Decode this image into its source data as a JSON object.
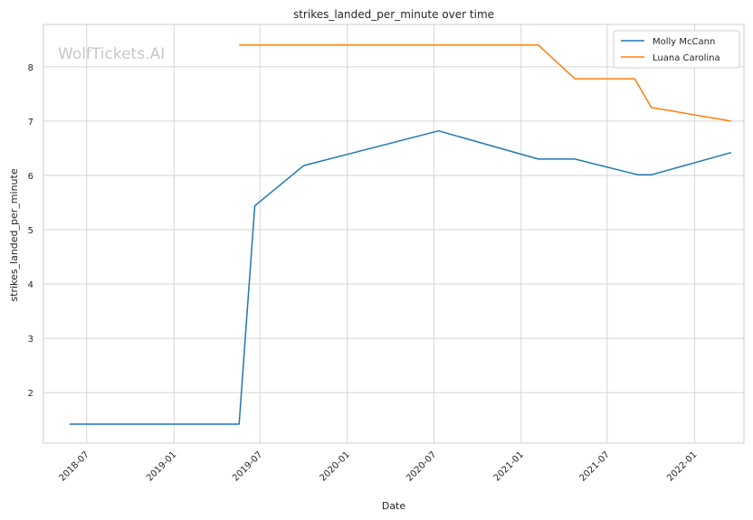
{
  "watermark": "WolfTickets.AI",
  "chart_data": {
    "type": "line",
    "title": "strikes_landed_per_minute over time",
    "xlabel": "Date",
    "ylabel": "strikes_landed_per_minute",
    "x_ticks": [
      "2018-07",
      "2019-01",
      "2019-07",
      "2020-01",
      "2020-07",
      "2021-01",
      "2021-07",
      "2022-01"
    ],
    "y_ticks": [
      2,
      3,
      4,
      5,
      6,
      7,
      8
    ],
    "xlim": [
      "2018-04-01",
      "2022-04-15"
    ],
    "ylim": [
      1.07,
      8.78
    ],
    "grid": true,
    "legend_position": "top-right",
    "series": [
      {
        "name": "Molly McCann",
        "color": "#1f77b4",
        "points": [
          {
            "x": "2018-05-26",
            "y": 1.42
          },
          {
            "x": "2019-05-18",
            "y": 1.42
          },
          {
            "x": "2019-06-20",
            "y": 5.44
          },
          {
            "x": "2019-10-01",
            "y": 6.18
          },
          {
            "x": "2020-07-11",
            "y": 6.82
          },
          {
            "x": "2021-02-06",
            "y": 6.3
          },
          {
            "x": "2021-04-24",
            "y": 6.3
          },
          {
            "x": "2021-09-04",
            "y": 6.01
          },
          {
            "x": "2021-10-02",
            "y": 6.01
          },
          {
            "x": "2022-03-19",
            "y": 6.42
          }
        ]
      },
      {
        "name": "Luana Carolina",
        "color": "#ff7f0e",
        "points": [
          {
            "x": "2019-05-18",
            "y": 8.4
          },
          {
            "x": "2021-02-06",
            "y": 8.4
          },
          {
            "x": "2021-04-24",
            "y": 7.78
          },
          {
            "x": "2021-08-28",
            "y": 7.78
          },
          {
            "x": "2021-10-02",
            "y": 7.25
          },
          {
            "x": "2022-03-19",
            "y": 7.0
          }
        ]
      }
    ]
  }
}
